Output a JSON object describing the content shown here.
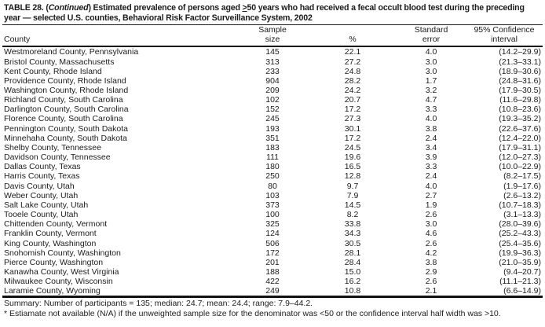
{
  "title": {
    "prefix": "TABLE 28. (",
    "continued": "Continued",
    "after_continued": ") Estimated prevalence of persons aged ",
    "ge_symbol": ">",
    "rest": "50 years who had received a fecal occult blood test during the preceding year — selected U.S. counties, Behavioral Risk Factor Surveillance System, 2002"
  },
  "table": {
    "columns": {
      "county": "County",
      "sample_line1": "Sample",
      "sample_line2": "size",
      "percent": "%",
      "se_line1": "Standard",
      "se_line2": "error",
      "ci_line1": "95% Confidence",
      "ci_line2": "interval"
    },
    "rows": [
      {
        "county": "Westmoreland County, Pennsylvania",
        "sample": "145",
        "pct": "22.1",
        "se": "4.0",
        "ci": "(14.2–29.9)"
      },
      {
        "county": "Bristol County, Massachusetts",
        "sample": "313",
        "pct": "27.2",
        "se": "3.0",
        "ci": "(21.3–33.1)"
      },
      {
        "county": "Kent County, Rhode Island",
        "sample": "233",
        "pct": "24.8",
        "se": "3.0",
        "ci": "(18.9–30.6)"
      },
      {
        "county": "Providence County, Rhode Island",
        "sample": "904",
        "pct": "28.2",
        "se": "1.7",
        "ci": "(24.8–31.6)"
      },
      {
        "county": "Washington County, Rhode Island",
        "sample": "209",
        "pct": "24.2",
        "se": "3.2",
        "ci": "(17.9–30.5)"
      },
      {
        "county": "Richland County, South Carolina",
        "sample": "102",
        "pct": "20.7",
        "se": "4.7",
        "ci": "(11.6–29.8)"
      },
      {
        "county": "Darlington County, South Carolina",
        "sample": "152",
        "pct": "17.2",
        "se": "3.3",
        "ci": "(10.8–23.6)"
      },
      {
        "county": "Florence County, South Carolina",
        "sample": "245",
        "pct": "27.3",
        "se": "4.0",
        "ci": "(19.3–35.2)"
      },
      {
        "county": "Pennington County, South Dakota",
        "sample": "193",
        "pct": "30.1",
        "se": "3.8",
        "ci": "(22.6–37.6)"
      },
      {
        "county": "Minnehaha County, South Dakota",
        "sample": "351",
        "pct": "17.2",
        "se": "2.4",
        "ci": "(12.4–22.0)"
      },
      {
        "county": "Shelby County, Tennessee",
        "sample": "183",
        "pct": "24.5",
        "se": "3.4",
        "ci": "(17.9–31.1)"
      },
      {
        "county": "Davidson County, Tennessee",
        "sample": "111",
        "pct": "19.6",
        "se": "3.9",
        "ci": "(12.0–27.3)"
      },
      {
        "county": "Dallas County, Texas",
        "sample": "180",
        "pct": "16.5",
        "se": "3.3",
        "ci": "(10.0–22.9)"
      },
      {
        "county": "Harris County, Texas",
        "sample": "250",
        "pct": "12.8",
        "se": "2.4",
        "ci": "(8.2–17.5)"
      },
      {
        "county": "Davis County, Utah",
        "sample": "80",
        "pct": "9.7",
        "se": "4.0",
        "ci": "(1.9–17.6)"
      },
      {
        "county": "Weber County, Utah",
        "sample": "103",
        "pct": "7.9",
        "se": "2.7",
        "ci": "(2.6–13.2)"
      },
      {
        "county": "Salt Lake County, Utah",
        "sample": "373",
        "pct": "14.5",
        "se": "1.9",
        "ci": "(10.7–18.3)"
      },
      {
        "county": "Tooele County, Utah",
        "sample": "100",
        "pct": "8.2",
        "se": "2.6",
        "ci": "(3.1–13.3)"
      },
      {
        "county": "Chittenden County, Vermont",
        "sample": "325",
        "pct": "33.8",
        "se": "3.0",
        "ci": "(28.0–39.6)"
      },
      {
        "county": "Franklin County, Vermont",
        "sample": "124",
        "pct": "34.3",
        "se": "4.6",
        "ci": "(25.2–43.3)"
      },
      {
        "county": "King County, Washington",
        "sample": "506",
        "pct": "30.5",
        "se": "2.6",
        "ci": "(25.4–35.6)"
      },
      {
        "county": "Snohomish County, Washington",
        "sample": "172",
        "pct": "28.1",
        "se": "4.2",
        "ci": "(19.9–36.3)"
      },
      {
        "county": "Pierce County, Washington",
        "sample": "201",
        "pct": "28.4",
        "se": "3.8",
        "ci": "(21.0–35.9)"
      },
      {
        "county": "Kanawha County, West Virginia",
        "sample": "188",
        "pct": "15.0",
        "se": "2.9",
        "ci": "(9.4–20.7)"
      },
      {
        "county": "Milwaukee County, Wisconsin",
        "sample": "422",
        "pct": "16.2",
        "se": "2.6",
        "ci": "(11.1–21.3)"
      },
      {
        "county": "Laramie County, Wyoming",
        "sample": "249",
        "pct": "10.8",
        "se": "2.1",
        "ci": "(6.6–14.9)"
      }
    ]
  },
  "summary": "Summary: Number of participants = 135; median: 24.7; mean: 24.4; range: 7.9–44.2.",
  "footnote": "* Estiamate not available (N/A) if the unweighted sample size for the denominator was <50 or the confidence interval half width was >10."
}
